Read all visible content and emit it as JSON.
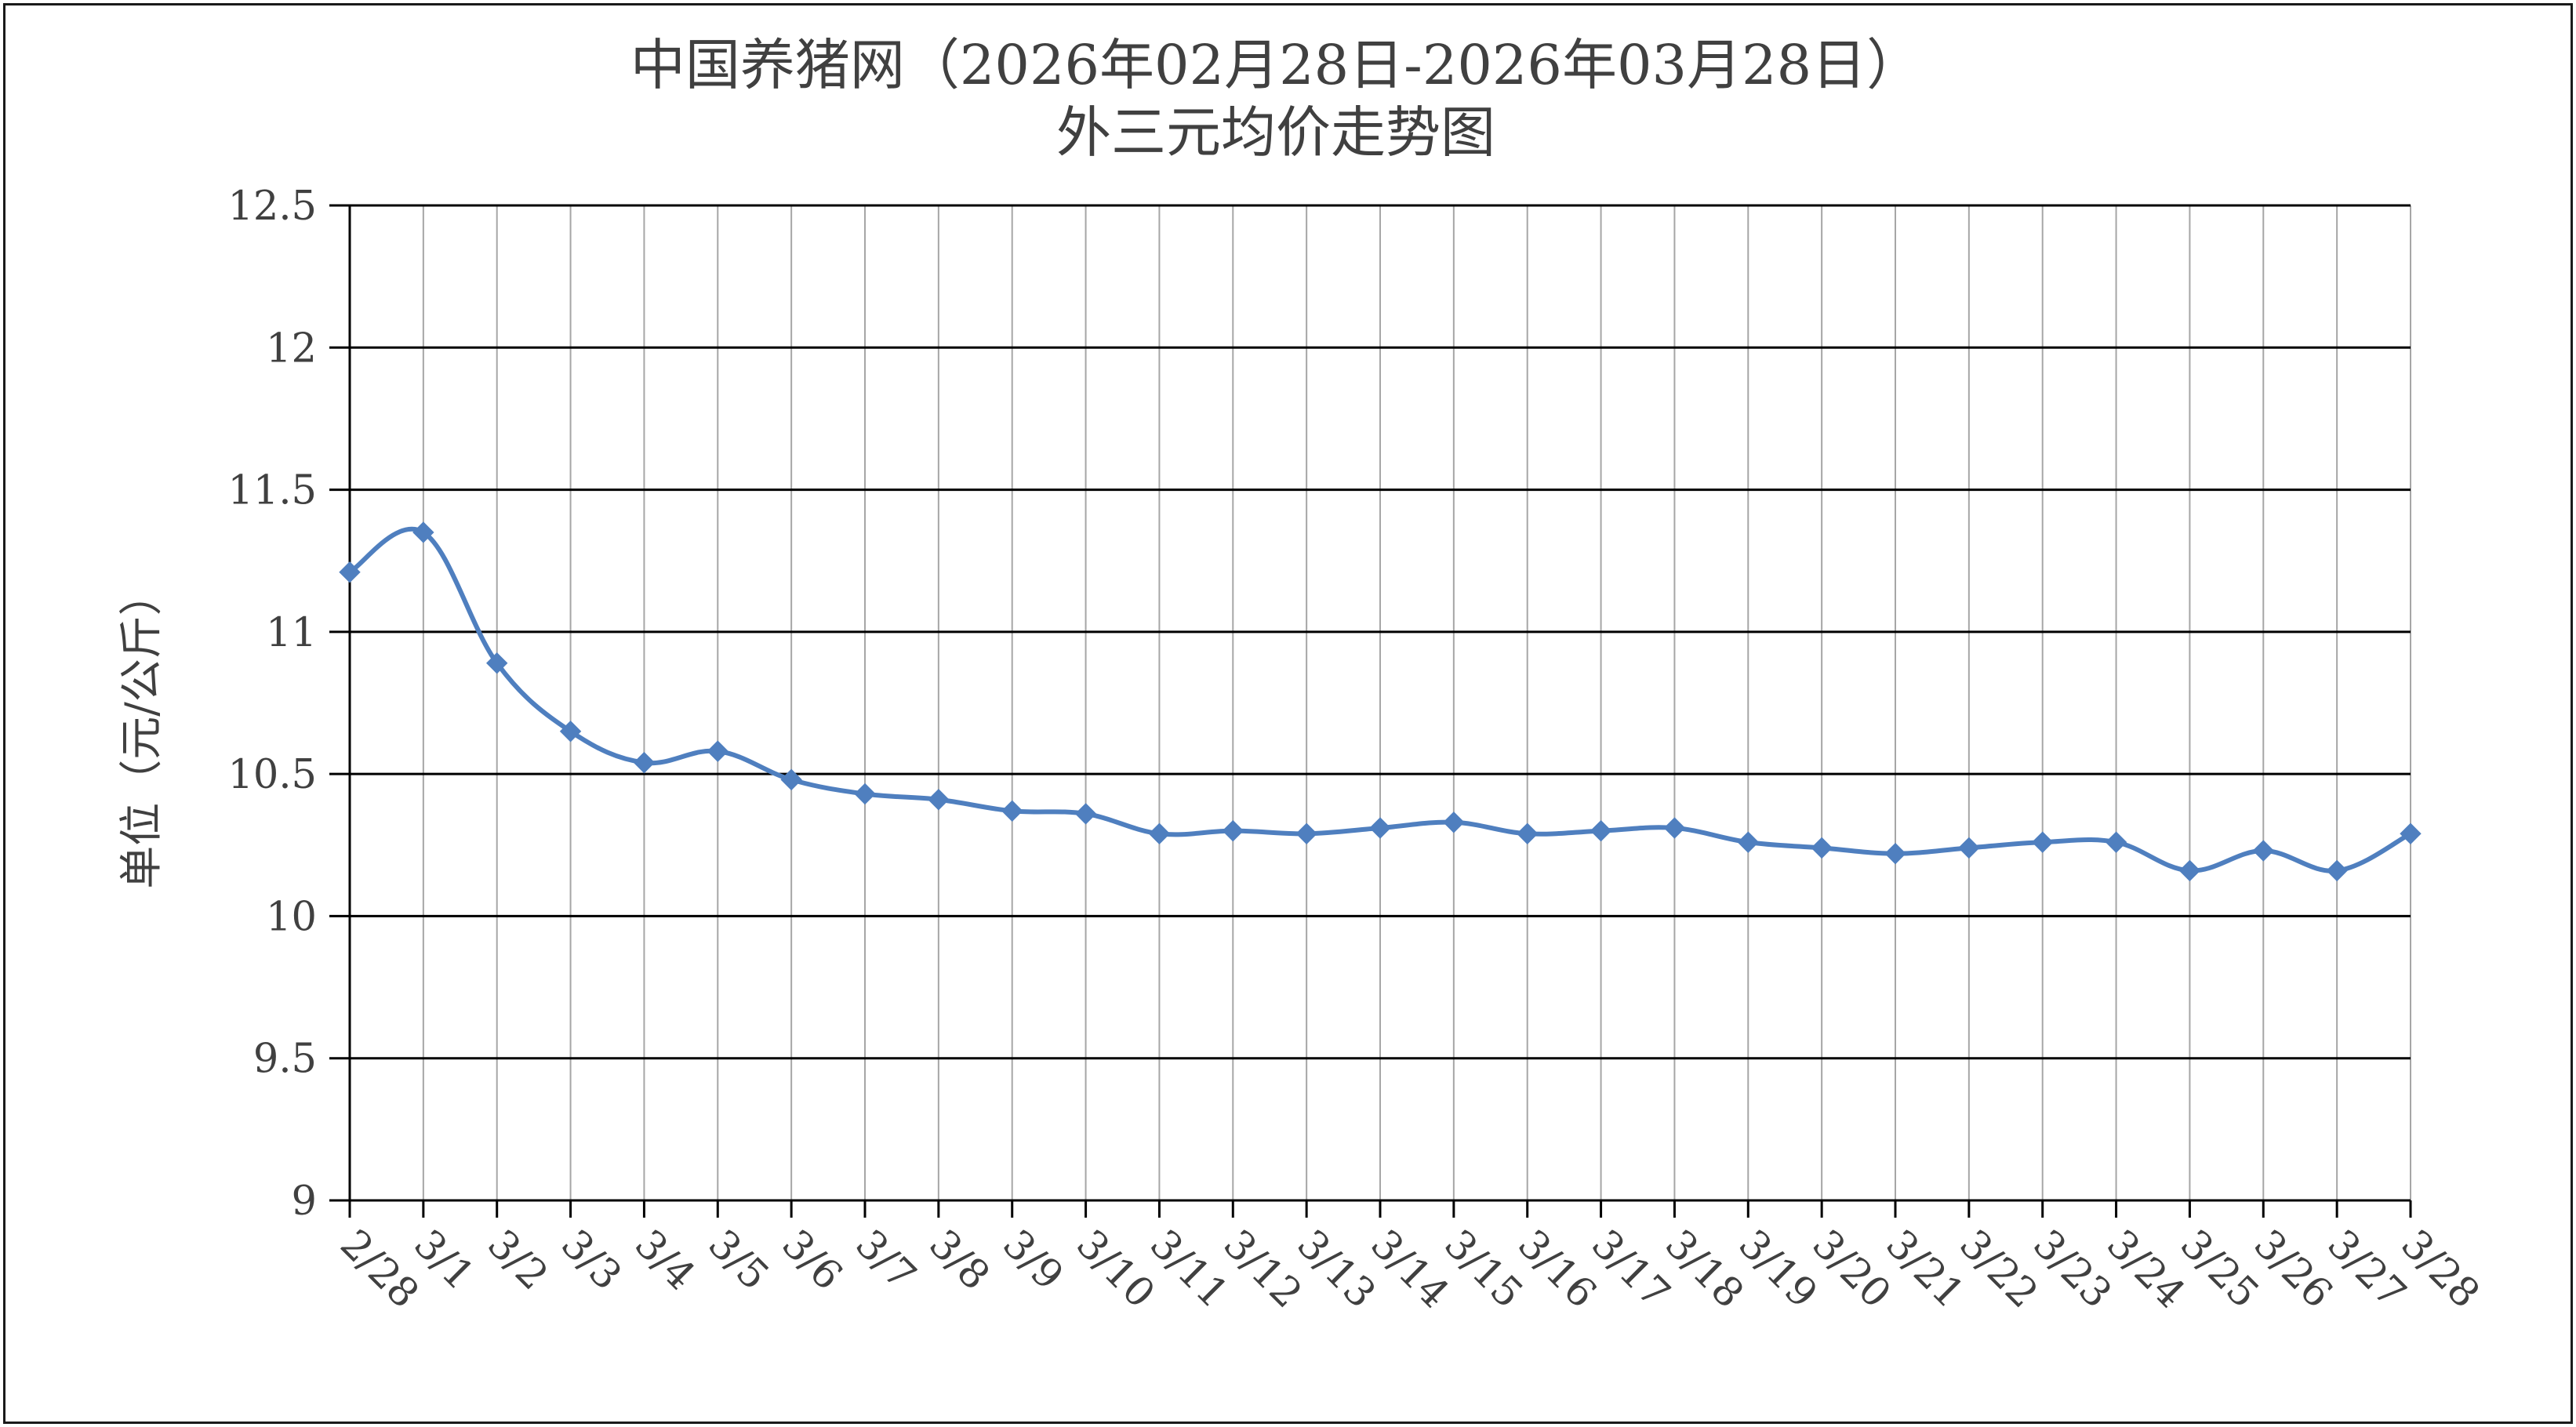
{
  "chart_data": {
    "type": "line",
    "title_lines": [
      "中国养猪网（2026年02月28日-2026年03月28日）",
      "外三元均价走势图"
    ],
    "ylabel": "单位（元/公斤）",
    "xlabel": "",
    "ylim": [
      9,
      12.5
    ],
    "yticks": [
      "9",
      "9.5",
      "10",
      "10.5",
      "11",
      "11.5",
      "12",
      "12.5"
    ],
    "grid": {
      "horizontal": true,
      "vertical": true
    },
    "legend": "none",
    "categories": [
      "2/28",
      "3/1",
      "3/2",
      "3/3",
      "3/4",
      "3/5",
      "3/6",
      "3/7",
      "3/8",
      "3/9",
      "3/10",
      "3/11",
      "3/12",
      "3/13",
      "3/14",
      "3/15",
      "3/16",
      "3/17",
      "3/18",
      "3/19",
      "3/20",
      "3/21",
      "3/22",
      "3/23",
      "3/24",
      "3/25",
      "3/26",
      "3/27",
      "3/28"
    ],
    "series": [
      {
        "color": "#4f7fbf",
        "marker": "diamond",
        "values": [
          11.21,
          11.35,
          10.89,
          10.65,
          10.54,
          10.58,
          10.48,
          10.43,
          10.41,
          10.37,
          10.36,
          10.29,
          10.3,
          10.29,
          10.31,
          10.33,
          10.29,
          10.3,
          10.31,
          10.26,
          10.24,
          10.22,
          10.24,
          10.26,
          10.26,
          10.16,
          10.23,
          10.16,
          10.29
        ]
      }
    ]
  }
}
